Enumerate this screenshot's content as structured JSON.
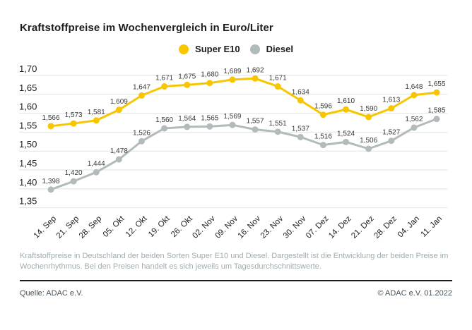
{
  "title": "Kraftstoffpreise im Wochenvergleich in Euro/Liter",
  "chart_data": {
    "type": "line",
    "title": "Kraftstoffpreise im Wochenvergleich in Euro/Liter",
    "categories": [
      "14. Sep",
      "21. Sep",
      "28. Sep",
      "05. Okt",
      "12. Okt",
      "19. Okt",
      "26. Okt",
      "02. Nov",
      "09. Nov",
      "16. Nov",
      "23. Nov",
      "30. Nov",
      "07. Dez",
      "14. Dez",
      "21. Dez",
      "28. Dez",
      "04. Jan",
      "11. Jan"
    ],
    "series": [
      {
        "name": "Super E10",
        "color": "#f7c600",
        "values": [
          1.566,
          1.573,
          1.581,
          1.609,
          1.647,
          1.671,
          1.675,
          1.68,
          1.689,
          1.692,
          1.671,
          1.634,
          1.596,
          1.61,
          1.59,
          1.613,
          1.648,
          1.655
        ]
      },
      {
        "name": "Diesel",
        "color": "#b1bbbb",
        "values": [
          1.398,
          1.42,
          1.444,
          1.478,
          1.526,
          1.56,
          1.564,
          1.565,
          1.569,
          1.557,
          1.551,
          1.537,
          1.516,
          1.524,
          1.506,
          1.527,
          1.562,
          1.585
        ]
      }
    ],
    "ylim": [
      1.35,
      1.7
    ],
    "ytick_step": 0.05,
    "ytick_labels": [
      "1,70",
      "1,65",
      "1,60",
      "1,55",
      "1,50",
      "1,45",
      "1,40",
      "1,35"
    ],
    "decimal_separator": ",",
    "grid": true,
    "legend_position": "top-center",
    "xlabel": "",
    "ylabel": "Euro/Liter"
  },
  "footnote": {
    "line1": "Kraftstoffpreise in Deutschland der beiden Sorten Super E10 und Diesel. Dargestellt ist die Entwicklung der beiden Preise im",
    "line2": "Wochenrhythmus. Bei den Preisen handelt es sich jeweils um Tagesdurchschnittswerte."
  },
  "footer": {
    "source": "Quelle: ADAC e.V.",
    "copyright": "© ADAC e.V. 01.2022"
  },
  "colors": {
    "super_e10": "#f7c600",
    "diesel": "#b1bbbb",
    "gridline": "#dee3e3",
    "title_text": "#1d1d1b",
    "data_label": "#3a3a38",
    "tick_label": "#1d1d1b",
    "footnote_text": "#9fadb2",
    "footer_text": "#46525a",
    "divider": "#1d1d1b"
  }
}
